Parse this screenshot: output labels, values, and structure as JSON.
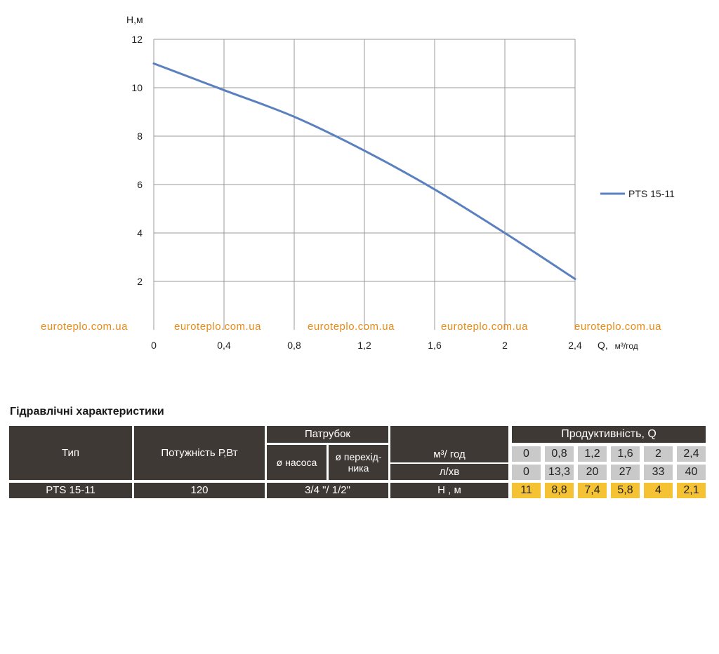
{
  "chart_data": {
    "type": "line",
    "ylabel": "H,м",
    "xlabel_prefix": "Q,",
    "xlabel_unit": "м³/год",
    "x_ticks": [
      "0",
      "0,4",
      "0,8",
      "1,2",
      "1,6",
      "2",
      "2,4"
    ],
    "y_ticks": [
      "2",
      "4",
      "6",
      "8",
      "10",
      "12"
    ],
    "xlim": [
      0,
      2.4
    ],
    "ylim": [
      0,
      12
    ],
    "grid": true,
    "legend_position": "right",
    "series": [
      {
        "name": "PTS 15-11",
        "color": "#5b80c0",
        "x": [
          0,
          0.4,
          0.8,
          1.2,
          1.6,
          2.0,
          2.4
        ],
        "y": [
          11,
          9.9,
          8.8,
          7.4,
          5.8,
          4.0,
          2.1
        ]
      }
    ]
  },
  "watermarks": [
    "euroteplo.com.ua",
    "euroteplo.com.ua",
    "euroteplo.com.ua",
    "euroteplo.com.ua",
    "euroteplo.com.ua"
  ],
  "table": {
    "title": "Гідравлічні характеристики",
    "headers": {
      "type": "Тип",
      "power": "Потужність  Р,Вт",
      "nozzle": "Патрубок",
      "pump_diam": "ø насоса",
      "adapter_diam_line1": "ø перехід-",
      "adapter_diam_line2": "ника",
      "unit_m3": "м³/ год",
      "unit_lmin": "л/хв",
      "unit_h": "Н , м",
      "productivity": "Продуктивність, Q"
    },
    "q_m3": [
      "0",
      "0,8",
      "1,2",
      "1,6",
      "2",
      "2,4"
    ],
    "q_lmin": [
      "0",
      "13,3",
      "20",
      "27",
      "33",
      "40"
    ],
    "row": {
      "type": "PTS 15-11",
      "power": "120",
      "nozzle": "3/4 \"/ 1/2\"",
      "head": [
        "11",
        "8,8",
        "7,4",
        "5,8",
        "4",
        "2,1"
      ]
    }
  }
}
